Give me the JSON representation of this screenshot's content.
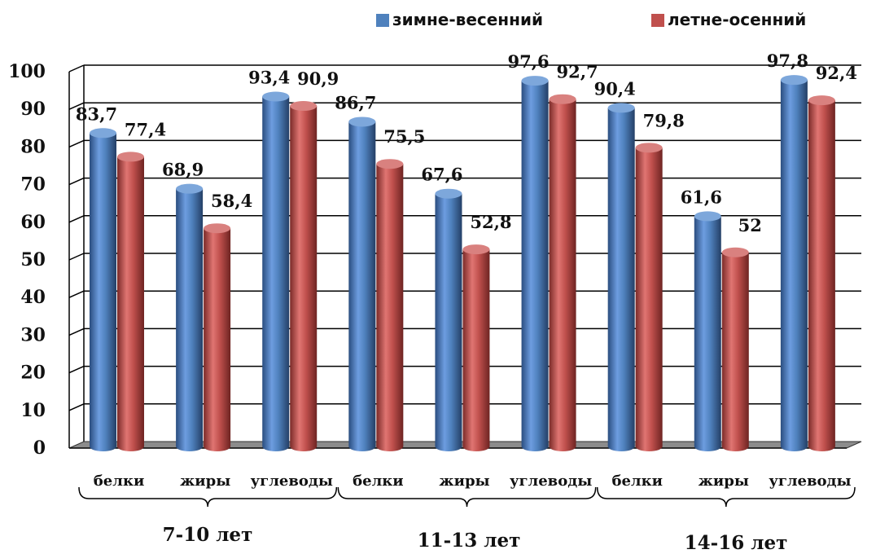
{
  "chart_data": {
    "type": "bar",
    "style": "3d-cylinder",
    "ylim": [
      0,
      100
    ],
    "yticks": [
      "0",
      "10",
      "20",
      "30",
      "40",
      "50",
      "60",
      "70",
      "80",
      "90",
      "100"
    ],
    "groups": [
      "7-10 лет",
      "11-13 лет",
      "14-16 лет"
    ],
    "categories": [
      "белки",
      "жиры",
      "углеводы",
      "белки",
      "жиры",
      "углеводы",
      "белки",
      "жиры",
      "углеводы"
    ],
    "series": [
      {
        "name": "зимне-весенний",
        "color": "#4f81bd",
        "values": [
          83.7,
          68.9,
          93.4,
          86.7,
          67.6,
          97.6,
          90.4,
          61.6,
          97.8
        ],
        "labels": [
          "83,7",
          "68,9",
          "93,4",
          "86,7",
          "67,6",
          "97,6",
          "90,4",
          "61,6",
          "97,8"
        ]
      },
      {
        "name": "летне-осенний",
        "color": "#c0504d",
        "values": [
          77.4,
          58.4,
          90.9,
          75.5,
          52.8,
          92.7,
          79.8,
          52,
          92.4
        ],
        "labels": [
          "77,4",
          "58,4",
          "90,9",
          "75,5",
          "52,8",
          "92,7",
          "79,8",
          "52",
          "92,4"
        ]
      }
    ],
    "grid": true,
    "legend_position": "top"
  }
}
